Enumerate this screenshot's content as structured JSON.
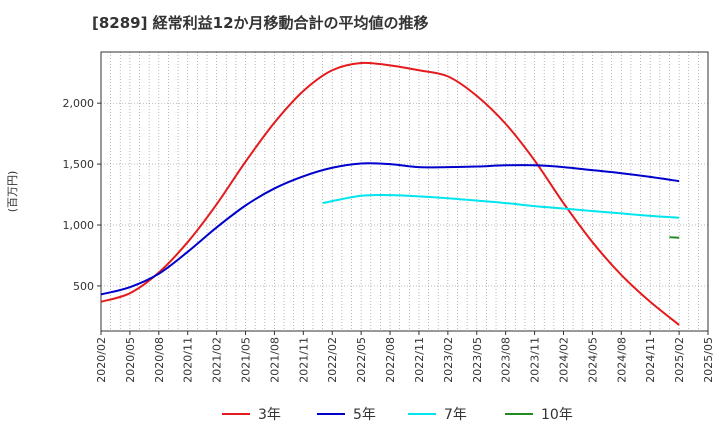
{
  "chart_data": {
    "type": "line",
    "title": "[8289]  経常利益12か月移動合計の平均値の推移",
    "ylabel": "(百万円)",
    "xlabel": "",
    "ylim": [
      130,
      2420
    ],
    "y_ticks": [
      500,
      1000,
      1500,
      2000
    ],
    "y_tick_labels": [
      "500",
      "1,000",
      "1,500",
      "2,000"
    ],
    "x_tick_labels": [
      "2020/02",
      "2020/05",
      "2020/08",
      "2020/11",
      "2021/02",
      "2021/05",
      "2021/08",
      "2021/11",
      "2022/02",
      "2022/05",
      "2022/08",
      "2022/11",
      "2023/02",
      "2023/05",
      "2023/08",
      "2023/11",
      "2024/02",
      "2024/05",
      "2024/08",
      "2024/11",
      "2025/02",
      "2025/05"
    ],
    "grid": true,
    "legend_position": "bottom",
    "series": [
      {
        "name": "3年",
        "color": "#e41a1c",
        "points": [
          [
            "2020/02",
            370
          ],
          [
            "2020/05",
            440
          ],
          [
            "2020/08",
            610
          ],
          [
            "2020/11",
            860
          ],
          [
            "2021/02",
            1170
          ],
          [
            "2021/05",
            1520
          ],
          [
            "2021/08",
            1840
          ],
          [
            "2021/11",
            2100
          ],
          [
            "2022/02",
            2270
          ],
          [
            "2022/05",
            2330
          ],
          [
            "2022/08",
            2310
          ],
          [
            "2022/11",
            2270
          ],
          [
            "2023/02",
            2220
          ],
          [
            "2023/05",
            2060
          ],
          [
            "2023/08",
            1830
          ],
          [
            "2023/11",
            1530
          ],
          [
            "2024/02",
            1180
          ],
          [
            "2024/05",
            860
          ],
          [
            "2024/08",
            590
          ],
          [
            "2024/11",
            370
          ],
          [
            "2025/02",
            180
          ]
        ]
      },
      {
        "name": "5年",
        "color": "#0000cd",
        "points": [
          [
            "2020/02",
            430
          ],
          [
            "2020/05",
            490
          ],
          [
            "2020/08",
            600
          ],
          [
            "2020/11",
            780
          ],
          [
            "2021/02",
            980
          ],
          [
            "2021/05",
            1160
          ],
          [
            "2021/08",
            1300
          ],
          [
            "2021/11",
            1400
          ],
          [
            "2022/02",
            1470
          ],
          [
            "2022/05",
            1505
          ],
          [
            "2022/08",
            1500
          ],
          [
            "2022/11",
            1475
          ],
          [
            "2023/02",
            1475
          ],
          [
            "2023/05",
            1480
          ],
          [
            "2023/08",
            1490
          ],
          [
            "2023/11",
            1490
          ],
          [
            "2024/02",
            1475
          ],
          [
            "2024/05",
            1450
          ],
          [
            "2024/08",
            1425
          ],
          [
            "2024/11",
            1395
          ],
          [
            "2025/02",
            1360
          ]
        ]
      },
      {
        "name": "7年",
        "color": "#00e5ee",
        "points": [
          [
            "2022/01",
            1180
          ],
          [
            "2022/05",
            1240
          ],
          [
            "2022/08",
            1245
          ],
          [
            "2022/11",
            1235
          ],
          [
            "2023/02",
            1220
          ],
          [
            "2023/05",
            1200
          ],
          [
            "2023/08",
            1180
          ],
          [
            "2023/11",
            1155
          ],
          [
            "2024/02",
            1135
          ],
          [
            "2024/05",
            1115
          ],
          [
            "2024/08",
            1095
          ],
          [
            "2024/11",
            1075
          ],
          [
            "2025/02",
            1060
          ]
        ]
      },
      {
        "name": "10年",
        "color": "#228b22",
        "points": [
          [
            "2025/01",
            900
          ],
          [
            "2025/02",
            895
          ]
        ]
      }
    ]
  }
}
